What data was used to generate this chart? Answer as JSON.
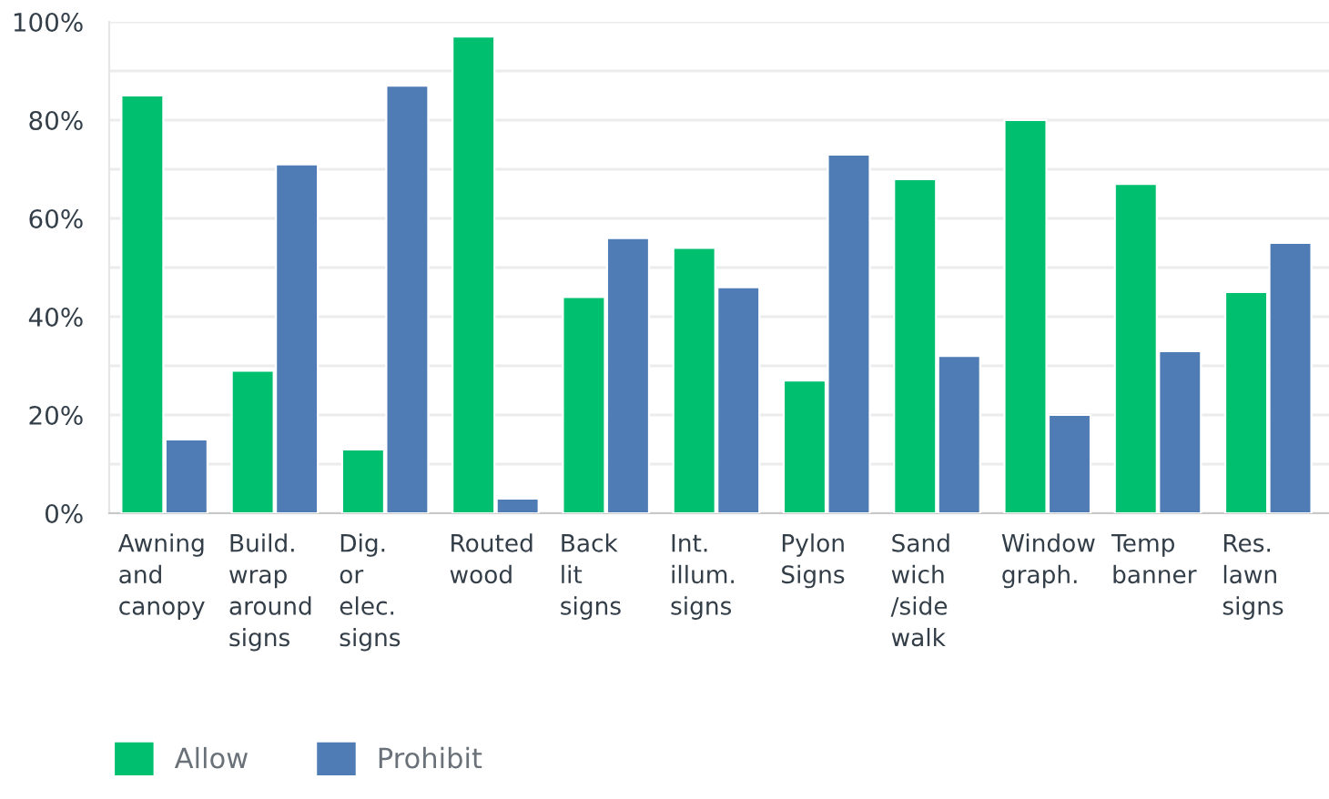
{
  "chart_data": {
    "type": "bar",
    "categories": [
      "Awning\nand\ncanopy",
      "Build.\nwrap\naround\nsigns",
      "Dig.\nor\nelec.\nsigns",
      "Routed\nwood",
      "Back\nlit\nsigns",
      "Int.\nillum.\nsigns",
      "Pylon\nSigns",
      "Sand\nwich\n/side\nwalk",
      "Window\ngraph.",
      "Temp\nbanner",
      "Res.\nlawn\nsigns"
    ],
    "series": [
      {
        "name": "Allow",
        "color": "#00bf6f",
        "values": [
          85,
          29,
          13,
          97,
          44,
          54,
          27,
          68,
          80,
          67,
          45
        ]
      },
      {
        "name": "Prohibit",
        "color": "#507cb6",
        "values": [
          15,
          71,
          87,
          3,
          56,
          46,
          73,
          32,
          20,
          33,
          55
        ]
      }
    ],
    "ylim": [
      0,
      100
    ],
    "yticks": [
      {
        "value": 0,
        "label": "0%"
      },
      {
        "value": 10,
        "label": null
      },
      {
        "value": 20,
        "label": "20%"
      },
      {
        "value": 30,
        "label": null
      },
      {
        "value": 40,
        "label": "40%"
      },
      {
        "value": 50,
        "label": null
      },
      {
        "value": 60,
        "label": "60%"
      },
      {
        "value": 70,
        "label": null
      },
      {
        "value": 80,
        "label": "80%"
      },
      {
        "value": 90,
        "label": null
      },
      {
        "value": 100,
        "label": "100%"
      }
    ],
    "grid": "y",
    "legend": "bottom left"
  }
}
